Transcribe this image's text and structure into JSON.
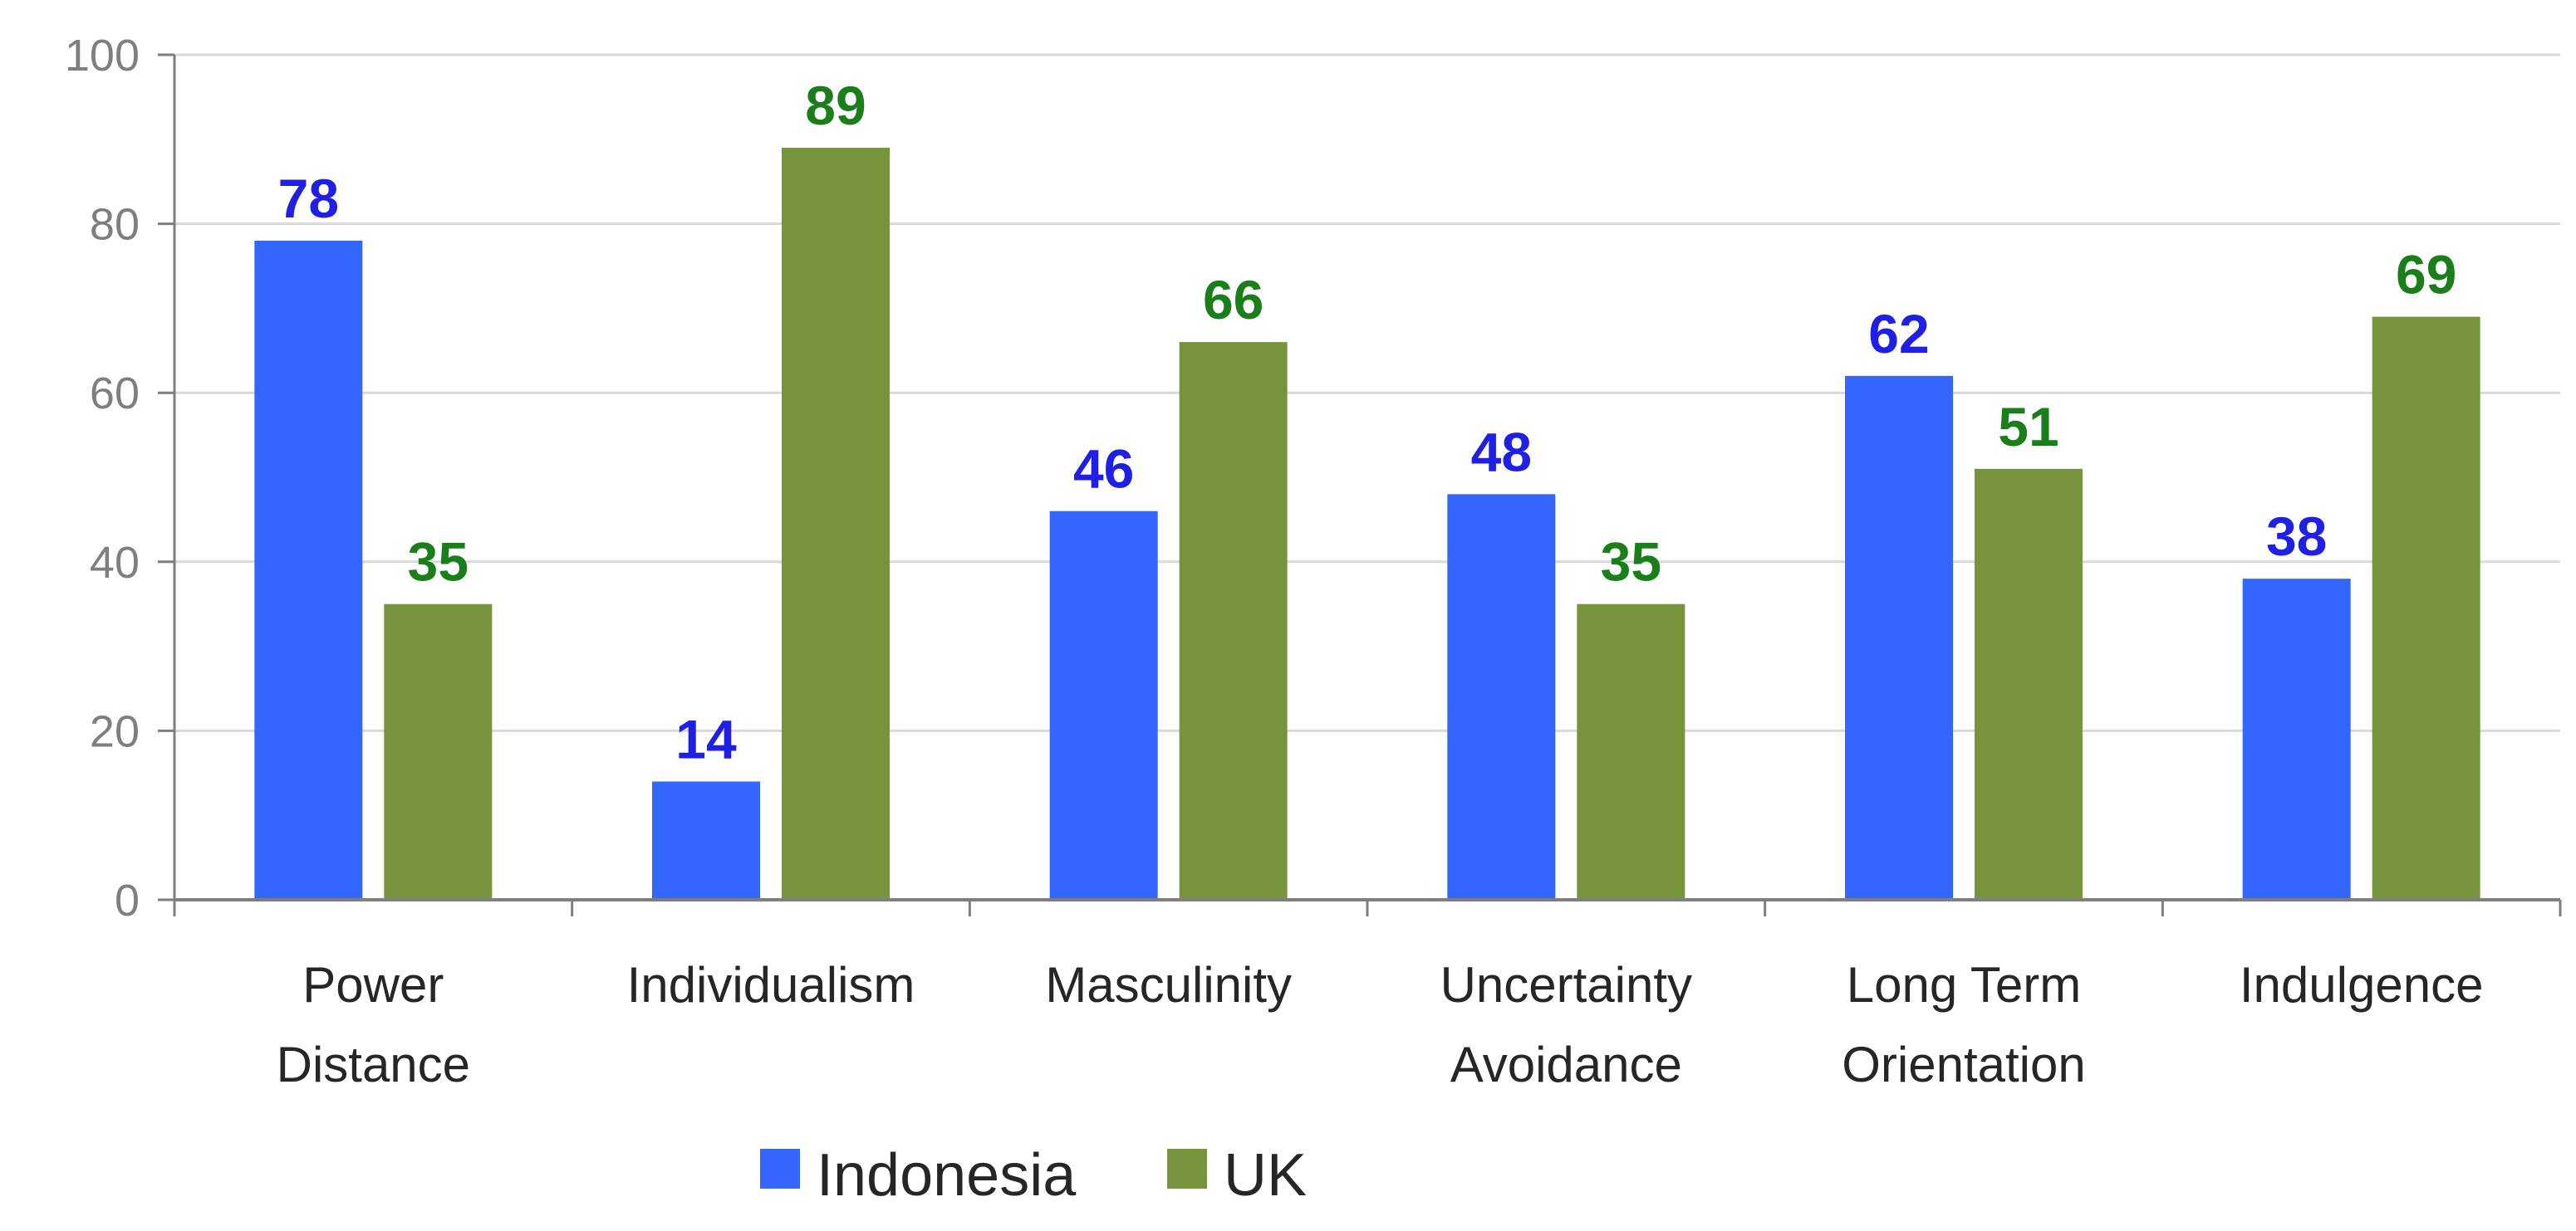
{
  "chart_data": {
    "type": "bar",
    "categories": [
      [
        "Power",
        "Distance"
      ],
      [
        "Individualism"
      ],
      [
        "Masculinity"
      ],
      [
        "Uncertainty",
        "Avoidance"
      ],
      [
        "Long Term",
        "Orientation"
      ],
      [
        "Indulgence"
      ]
    ],
    "series": [
      {
        "name": "Indonesia",
        "values": [
          78,
          14,
          46,
          48,
          62,
          38
        ],
        "color": "#3366ff",
        "label_color": "#1f1fe6"
      },
      {
        "name": "UK",
        "values": [
          35,
          89,
          66,
          35,
          51,
          69
        ],
        "color": "#77933c",
        "label_color": "#1a7f1a"
      }
    ],
    "ylim": [
      0,
      100
    ],
    "yticks": [
      0,
      20,
      40,
      60,
      80,
      100
    ],
    "grid": true,
    "legend_position": "bottom-center",
    "colors": {
      "gridline": "#d9d9d9",
      "axis": "#7f7f7f"
    }
  }
}
